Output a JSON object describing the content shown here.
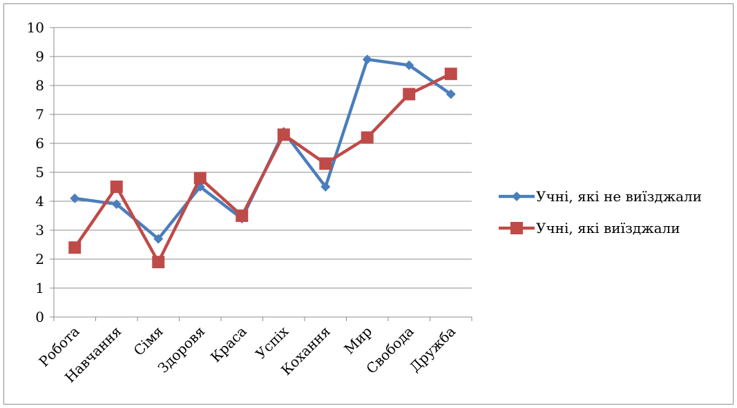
{
  "chart_data": {
    "type": "line",
    "title": "",
    "xlabel": "",
    "ylabel": "",
    "categories": [
      "Робота",
      "Навчання",
      "Сімя",
      "Здоровя",
      "Краса",
      "Успіх",
      "Кохання",
      "Мир",
      "Свобода",
      "Дружба"
    ],
    "ylim": [
      0,
      10
    ],
    "yticks": [
      0,
      1,
      2,
      3,
      4,
      5,
      6,
      7,
      8,
      9,
      10
    ],
    "grid": true,
    "legend_position": "right",
    "series": [
      {
        "name": "Учні, які не виїзджали",
        "color": "#4a7ebb",
        "marker": "diamond",
        "values": [
          4.1,
          3.9,
          2.7,
          4.5,
          3.4,
          6.4,
          4.5,
          8.9,
          8.7,
          7.7
        ]
      },
      {
        "name": "Учні, які виїзджали",
        "color": "#be4b48",
        "marker": "square",
        "values": [
          2.4,
          4.5,
          1.9,
          4.8,
          3.5,
          6.3,
          5.3,
          6.2,
          7.7,
          8.4
        ]
      }
    ]
  }
}
